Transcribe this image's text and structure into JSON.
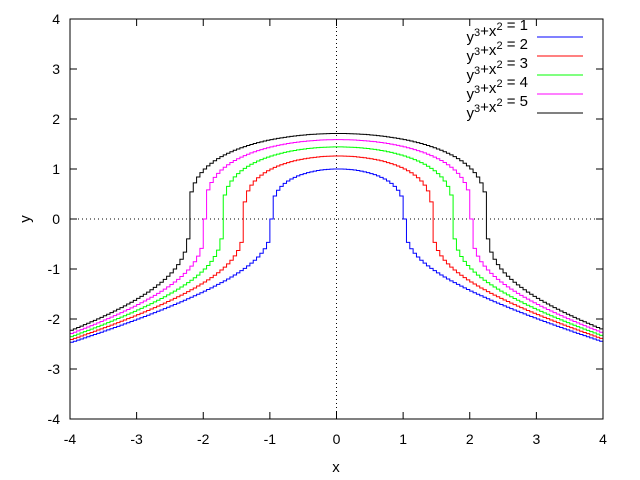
{
  "chart_data": {
    "type": "line",
    "xlabel": "x",
    "ylabel": "y",
    "xlim": [
      -4,
      4
    ],
    "ylim": [
      -4,
      4
    ],
    "xticks": [
      -4,
      -3,
      -2,
      -1,
      0,
      1,
      2,
      3,
      4
    ],
    "yticks": [
      -4,
      -3,
      -2,
      -1,
      0,
      1,
      2,
      3,
      4
    ],
    "zero_axes": "dotted",
    "legend_position": "top-right",
    "series": [
      {
        "name": "y^3+x^2 = 1",
        "label_base": "y",
        "label_exp1": "3",
        "label_mid": "+x",
        "label_exp2": "2",
        "label_tail": " = 1",
        "c": 1,
        "color": "#0000ff"
      },
      {
        "name": "y^3+x^2 = 2",
        "label_base": "y",
        "label_exp1": "3",
        "label_mid": "+x",
        "label_exp2": "2",
        "label_tail": " = 2",
        "c": 2,
        "color": "#ff0000"
      },
      {
        "name": "y^3+x^2 = 3",
        "label_base": "y",
        "label_exp1": "3",
        "label_mid": "+x",
        "label_exp2": "2",
        "label_tail": " = 3",
        "c": 3,
        "color": "#00ff00"
      },
      {
        "name": "y^3+x^2 = 4",
        "label_base": "y",
        "label_exp1": "3",
        "label_mid": "+x",
        "label_exp2": "2",
        "label_tail": " = 4",
        "c": 4,
        "color": "#ff00ff"
      },
      {
        "name": "y^3+x^2 = 5",
        "label_base": "y",
        "label_exp1": "3",
        "label_mid": "+x",
        "label_exp2": "2",
        "label_tail": " = 5",
        "c": 5,
        "color": "#000000"
      }
    ]
  }
}
